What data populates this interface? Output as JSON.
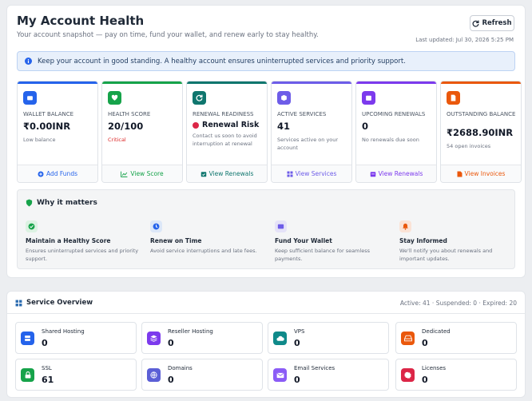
{
  "header": {
    "title": "My Account Health",
    "subtitle": "Your account snapshot — pay on time, fund your wallet, and renew early to stay healthy.",
    "refresh_label": "Refresh",
    "last_updated": "Last updated: Jul 30, 2026 5:25 PM"
  },
  "info_banner": "Keep your account in good standing. A healthy account ensures uninterrupted services and priority support.",
  "cards": [
    {
      "label": "WALLET BALANCE",
      "value": "₹0.00INR",
      "note": "Low balance",
      "action": "Add Funds",
      "color": "#2563eb",
      "icon": "wallet-icon"
    },
    {
      "label": "HEALTH SCORE",
      "value": "20/100",
      "note": "Critical",
      "action": "View Score",
      "color": "#16a34a",
      "icon": "heart-icon"
    },
    {
      "label": "RENEWAL READINESS",
      "value": "Renewal Risk",
      "note": "Contact us soon to avoid interruption at renewal",
      "action": "View Renewals",
      "color": "#0f766e",
      "icon": "refresh-icon"
    },
    {
      "label": "ACTIVE SERVICES",
      "value": "41",
      "note": "Services active on your account",
      "action": "View Services",
      "color": "#6d5ce8",
      "icon": "cube-icon"
    },
    {
      "label": "UPCOMING RENEWALS",
      "value": "0",
      "note": "No renewals due soon",
      "action": "View Renewals",
      "color": "#7c3aed",
      "icon": "calendar-icon"
    },
    {
      "label": "OUTSTANDING BALANCE",
      "value": "₹2688.90INR",
      "note": "54 open invoices",
      "action": "View Invoices",
      "color": "#ea580c",
      "icon": "invoice-icon"
    }
  ],
  "why": {
    "title": "Why it matters",
    "items": [
      {
        "title": "Maintain a Healthy Score",
        "desc": "Ensures uninterrupted services and priority support.",
        "color": "#16a34a",
        "bg": "#dcf2e2"
      },
      {
        "title": "Renew on Time",
        "desc": "Avoid service interruptions and late fees.",
        "color": "#2563eb",
        "bg": "#dce7f8"
      },
      {
        "title": "Fund Your Wallet",
        "desc": "Keep sufficient balance for seamless payments.",
        "color": "#6d5ce8",
        "bg": "#e5e2f8"
      },
      {
        "title": "Stay Informed",
        "desc": "We'll notify you about renewals and important updates.",
        "color": "#ea580c",
        "bg": "#fbe3d6"
      }
    ]
  },
  "services": {
    "title": "Service Overview",
    "summary": "Active: 41 · Suspended: 0 · Expired: 20",
    "items": [
      {
        "name": "Shared Hosting",
        "count": "0",
        "color": "#2563eb"
      },
      {
        "name": "Reseller Hosting",
        "count": "0",
        "color": "#7c3aed"
      },
      {
        "name": "VPS",
        "count": "0",
        "color": "#0f8a8a"
      },
      {
        "name": "Dedicated",
        "count": "0",
        "color": "#ea580c"
      },
      {
        "name": "SSL",
        "count": "61",
        "color": "#16a34a"
      },
      {
        "name": "Domains",
        "count": "0",
        "color": "#5b5fd6"
      },
      {
        "name": "Email Services",
        "count": "0",
        "color": "#8b5cf6"
      },
      {
        "name": "Licenses",
        "count": "0",
        "color": "#dc2647"
      }
    ]
  }
}
